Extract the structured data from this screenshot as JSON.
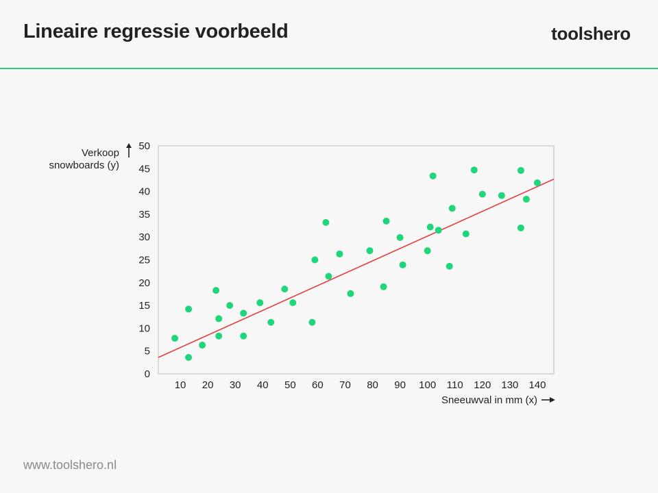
{
  "header": {
    "title": "Lineaire regressie voorbeeld",
    "brand": "toolshero"
  },
  "footer": {
    "url": "www.toolshero.nl"
  },
  "colors": {
    "accent": "#2ecf79",
    "points": "#1fd67a",
    "regression_line": "#e83c3c"
  },
  "chart_data": {
    "type": "scatter",
    "xlabel": "Sneeuwval in mm (x)",
    "ylabel": [
      "Verkoop",
      "snowboards (y)"
    ],
    "xlim": [
      2,
      146
    ],
    "ylim": [
      0,
      50
    ],
    "xticks": [
      10,
      20,
      30,
      40,
      50,
      60,
      70,
      80,
      90,
      100,
      110,
      120,
      130,
      140
    ],
    "yticks": [
      0,
      5,
      10,
      15,
      20,
      25,
      30,
      35,
      40,
      45,
      50
    ],
    "grid": false,
    "points": [
      {
        "x": 8,
        "y": 7.8
      },
      {
        "x": 13,
        "y": 14.2
      },
      {
        "x": 13,
        "y": 3.6
      },
      {
        "x": 18,
        "y": 6.3
      },
      {
        "x": 23,
        "y": 18.3
      },
      {
        "x": 24,
        "y": 12.1
      },
      {
        "x": 24,
        "y": 8.3
      },
      {
        "x": 28,
        "y": 15.0
      },
      {
        "x": 33,
        "y": 13.3
      },
      {
        "x": 33,
        "y": 8.3
      },
      {
        "x": 39,
        "y": 15.6
      },
      {
        "x": 43,
        "y": 11.3
      },
      {
        "x": 48,
        "y": 18.6
      },
      {
        "x": 51,
        "y": 15.6
      },
      {
        "x": 58,
        "y": 11.3
      },
      {
        "x": 59,
        "y": 25.0
      },
      {
        "x": 63,
        "y": 33.2
      },
      {
        "x": 64,
        "y": 21.4
      },
      {
        "x": 68,
        "y": 26.3
      },
      {
        "x": 72,
        "y": 17.6
      },
      {
        "x": 79,
        "y": 27.0
      },
      {
        "x": 84,
        "y": 19.1
      },
      {
        "x": 85,
        "y": 33.5
      },
      {
        "x": 90,
        "y": 29.9
      },
      {
        "x": 91,
        "y": 23.9
      },
      {
        "x": 100,
        "y": 27.0
      },
      {
        "x": 101,
        "y": 32.2
      },
      {
        "x": 102,
        "y": 43.4
      },
      {
        "x": 104,
        "y": 31.5
      },
      {
        "x": 108,
        "y": 23.6
      },
      {
        "x": 109,
        "y": 36.3
      },
      {
        "x": 114,
        "y": 30.7
      },
      {
        "x": 117,
        "y": 44.7
      },
      {
        "x": 120,
        "y": 39.4
      },
      {
        "x": 127,
        "y": 39.1
      },
      {
        "x": 134,
        "y": 44.6
      },
      {
        "x": 134,
        "y": 32.0
      },
      {
        "x": 136,
        "y": 38.3
      },
      {
        "x": 140,
        "y": 41.9
      }
    ],
    "regression_line": {
      "from": {
        "x": 2,
        "y": 3.6
      },
      "to": {
        "x": 146,
        "y": 42.7
      }
    }
  }
}
